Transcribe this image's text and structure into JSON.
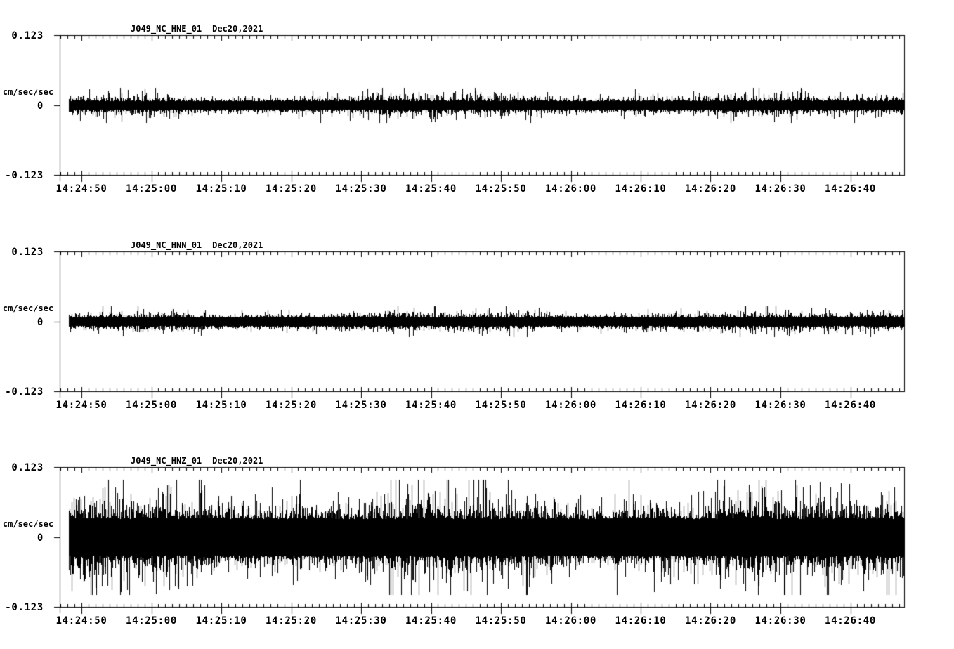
{
  "colors": {
    "background": "#ffffff",
    "ink": "#000000"
  },
  "axis": {
    "units_label": "cm/sec/sec",
    "amp_max_label": "0.123",
    "zero_label": "0",
    "amp_min_label": "-0.123",
    "time_tick_labels": [
      "14:24:50",
      "14:25:00",
      "14:25:10",
      "14:25:20",
      "14:25:30",
      "14:25:40",
      "14:25:50",
      "14:26:00",
      "14:26:10",
      "14:26:20",
      "14:26:30",
      "14:26:40"
    ]
  },
  "panels": [
    {
      "channel": "HNE",
      "title_station": "J049_NC_HNE_01",
      "title_date": "Dec20,2021",
      "seed": 11,
      "noise": {
        "core": 0.0074,
        "mean_dev": 0.0049,
        "peak": 0.031
      }
    },
    {
      "channel": "HNN",
      "title_station": "J049_NC_HNN_01",
      "title_date": "Dec20,2021",
      "seed": 22,
      "noise": {
        "core": 0.0074,
        "mean_dev": 0.0042,
        "peak": 0.027
      }
    },
    {
      "channel": "HNZ",
      "title_station": "J049_NC_HNZ_01",
      "title_date": "Dec20,2021",
      "seed": 33,
      "noise": {
        "core": 0.032,
        "mean_dev": 0.0173,
        "peak": 0.101
      }
    }
  ],
  "chart_data": [
    {
      "type": "line",
      "subtype": "seismogram_waveform",
      "title": "J049_NC_HNE_01  Dec20,2021",
      "station_channel_id": "J049_NC_HNE_01",
      "date": "Dec20,2021",
      "ylabel": "cm/sec/sec",
      "ylim": [
        -0.123,
        0.123
      ],
      "ytick_labels": [
        "0.123",
        "0",
        "-0.123"
      ],
      "xtick_labels": [
        "14:24:50",
        "14:25:00",
        "14:25:10",
        "14:25:20",
        "14:25:30",
        "14:25:40",
        "14:25:50",
        "14:26:00",
        "14:26:10",
        "14:26:20",
        "14:26:30",
        "14:26:40"
      ],
      "x_major_interval_sec": 10,
      "x_minor_interval_sec": 1,
      "x_start_approx": "14:24:47",
      "x_end_approx": "14:26:48",
      "grid": false,
      "legend": false,
      "signal_description": "continuous background noise centered on 0, no discrete event",
      "noise_core_amplitude": 0.0074,
      "noise_typical_peak": 0.018,
      "noise_max_peak": 0.031
    },
    {
      "type": "line",
      "subtype": "seismogram_waveform",
      "title": "J049_NC_HNN_01  Dec20,2021",
      "station_channel_id": "J049_NC_HNN_01",
      "date": "Dec20,2021",
      "ylabel": "cm/sec/sec",
      "ylim": [
        -0.123,
        0.123
      ],
      "ytick_labels": [
        "0.123",
        "0",
        "-0.123"
      ],
      "xtick_labels": [
        "14:24:50",
        "14:25:00",
        "14:25:10",
        "14:25:20",
        "14:25:30",
        "14:25:40",
        "14:25:50",
        "14:26:00",
        "14:26:10",
        "14:26:20",
        "14:26:30",
        "14:26:40"
      ],
      "x_major_interval_sec": 10,
      "x_minor_interval_sec": 1,
      "x_start_approx": "14:24:47",
      "x_end_approx": "14:26:48",
      "grid": false,
      "legend": false,
      "signal_description": "continuous background noise centered on 0, no discrete event",
      "noise_core_amplitude": 0.0074,
      "noise_typical_peak": 0.016,
      "noise_max_peak": 0.027
    },
    {
      "type": "line",
      "subtype": "seismogram_waveform",
      "title": "J049_NC_HNZ_01  Dec20,2021",
      "station_channel_id": "J049_NC_HNZ_01",
      "date": "Dec20,2021",
      "ylabel": "cm/sec/sec",
      "ylim": [
        -0.123,
        0.123
      ],
      "ytick_labels": [
        "0.123",
        "0",
        "-0.123"
      ],
      "xtick_labels": [
        "14:24:50",
        "14:25:00",
        "14:25:10",
        "14:25:20",
        "14:25:30",
        "14:25:40",
        "14:25:50",
        "14:26:00",
        "14:26:10",
        "14:26:20",
        "14:26:30",
        "14:26:40"
      ],
      "x_major_interval_sec": 10,
      "x_minor_interval_sec": 1,
      "x_start_approx": "14:24:47",
      "x_end_approx": "14:26:48",
      "grid": false,
      "legend": false,
      "signal_description": "continuous high-amplitude background noise centered on 0, no discrete event",
      "noise_core_amplitude": 0.032,
      "noise_typical_peak": 0.05,
      "noise_max_peak": 0.101
    }
  ]
}
